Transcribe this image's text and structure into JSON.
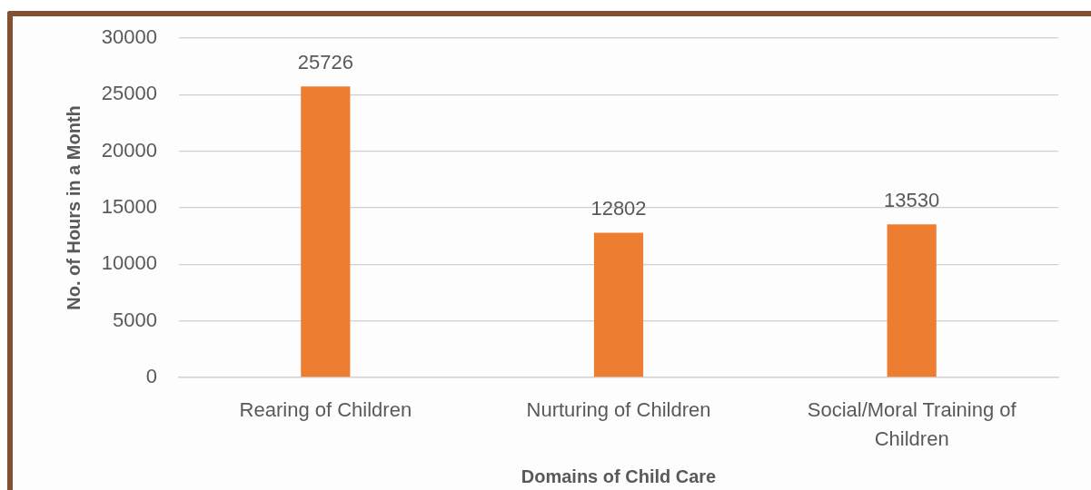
{
  "chart_data": {
    "type": "bar",
    "xlabel": "Domains of Child Care",
    "ylabel": "No. of Hours in a Month",
    "categories": [
      "Rearing of Children",
      "Nurturing of Children",
      "Social/Moral Training of Children"
    ],
    "values": [
      25726,
      12802,
      13530
    ],
    "color": "#ed7d31",
    "ylim": [
      0,
      30000
    ],
    "yticks": [
      0,
      5000,
      10000,
      15000,
      20000,
      25000,
      30000
    ],
    "grid": "y",
    "data_labels": true
  }
}
